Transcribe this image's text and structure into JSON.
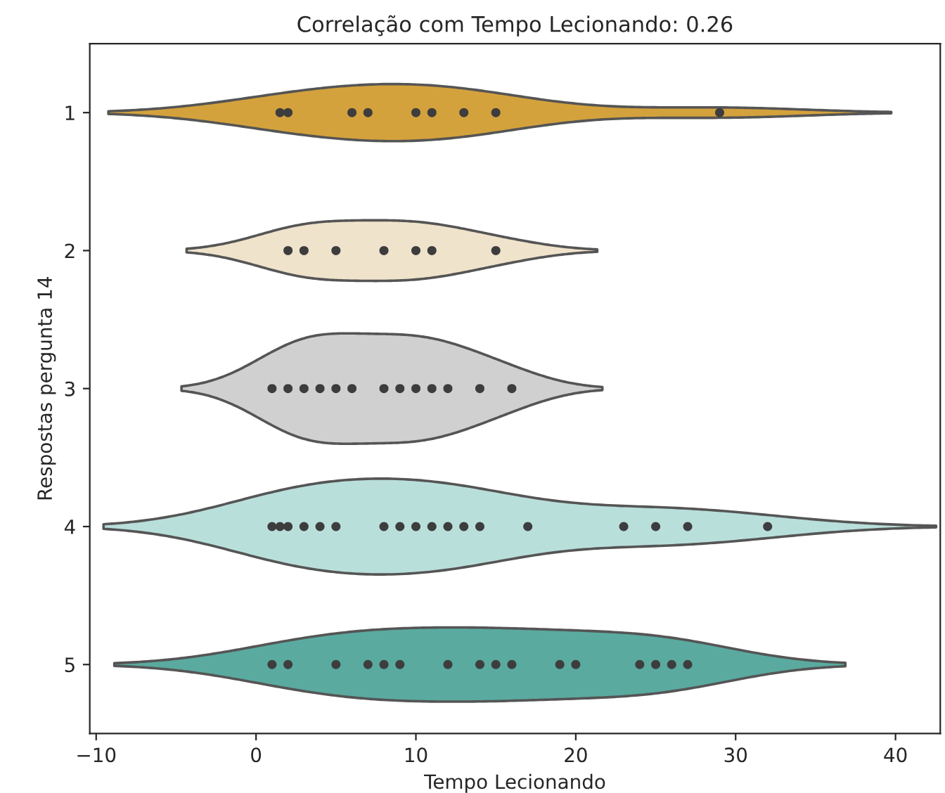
{
  "chart_data": {
    "type": "scatter",
    "orientation": "horizontal",
    "title": "Correlação com Tempo Lecionando: 0.26",
    "xlabel": "Tempo Lecionando",
    "ylabel": "Respostas pergunta 14",
    "categories": [
      "1",
      "2",
      "3",
      "4",
      "5"
    ],
    "colors": [
      "#d4a23c",
      "#efe3cb",
      "#d0d0d0",
      "#b9dfdb",
      "#5aaaa0"
    ],
    "series": [
      {
        "color": "#3d3d3d",
        "values": [
          1.5,
          2,
          6,
          7,
          10,
          11,
          13,
          15,
          29
        ],
        "x": [
          "1",
          "1",
          "1",
          "1",
          "1",
          "1",
          "1",
          "1",
          "1"
        ]
      },
      {
        "color": "#3d3d3d",
        "values": [
          2,
          3,
          5,
          8,
          10,
          11,
          15
        ],
        "x": [
          "2",
          "2",
          "2",
          "2",
          "2",
          "2",
          "2"
        ]
      },
      {
        "color": "#3d3d3d",
        "values": [
          1,
          2,
          3,
          4,
          5,
          6,
          8,
          9,
          10,
          11,
          12,
          14,
          16
        ],
        "x": [
          "3",
          "3",
          "3",
          "3",
          "3",
          "3",
          "3",
          "3",
          "3",
          "3",
          "3",
          "3",
          "3"
        ]
      },
      {
        "color": "#3d3d3d",
        "values": [
          1,
          1.5,
          2,
          3,
          4,
          5,
          8,
          9,
          10,
          11,
          12,
          13,
          14,
          17,
          23,
          25,
          27,
          32
        ],
        "x": [
          "4",
          "4",
          "4",
          "4",
          "4",
          "4",
          "4",
          "4",
          "4",
          "4",
          "4",
          "4",
          "4",
          "4",
          "4",
          "4",
          "4",
          "4"
        ]
      },
      {
        "color": "#3d3d3d",
        "values": [
          1,
          2,
          5,
          7,
          8,
          9,
          12,
          14,
          15,
          16,
          19,
          20,
          24,
          25,
          26,
          27
        ],
        "x": [
          "5",
          "5",
          "5",
          "5",
          "5",
          "5",
          "5",
          "5",
          "5",
          "5",
          "5",
          "5",
          "5",
          "5",
          "5",
          "5"
        ]
      }
    ],
    "xlim": [
      -10.4,
      42.8
    ],
    "xticks": [
      {
        "value": -10,
        "label": "−10"
      },
      0,
      10,
      20,
      30,
      40
    ],
    "marker": "circle",
    "grid": false
  }
}
